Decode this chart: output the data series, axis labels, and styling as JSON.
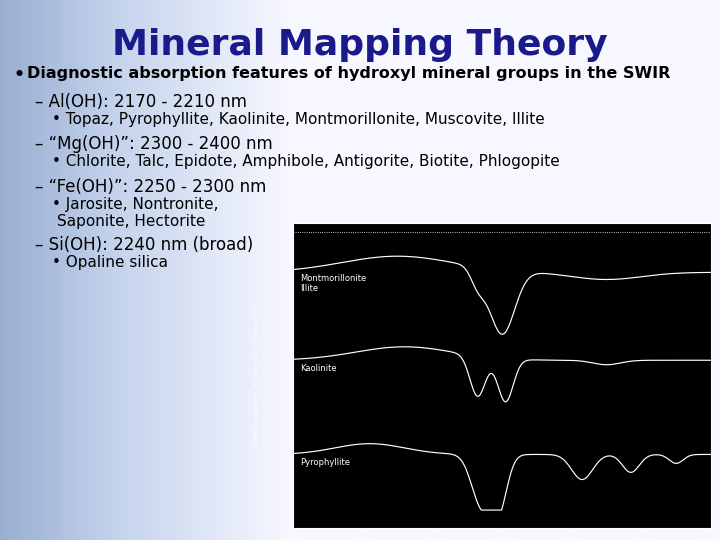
{
  "title": "Mineral Mapping Theory",
  "title_color": "#1a1a8c",
  "title_fontsize": 26,
  "bullet_main": "Diagnostic absorption features of hydroxyl mineral groups in the SWIR",
  "bullet_main_fontsize": 11.5,
  "items": [
    {
      "dash": "– Al(OH): 2170 - 2210 nm",
      "sub": "• Topaz, Pyrophyllite, Kaolinite, Montmorillonite, Muscovite, Illite"
    },
    {
      "dash": "– “Mg(OH)”: 2300 - 2400 nm",
      "sub": "• Chlorite, Talc, Epidote, Amphibole, Antigorite, Biotite, Phlogopite"
    },
    {
      "dash": "– “Fe(OH)”: 2250 - 2300 nm",
      "sub1": "• Jarosite, Nontronite,",
      "sub2": "Saponite, Hectorite"
    },
    {
      "dash": "– Si(OH): 2240 nm (broad)",
      "sub": "• Opaline silica"
    }
  ],
  "text_color": "#000000",
  "item_fontsize": 12,
  "sub_fontsize": 11
}
